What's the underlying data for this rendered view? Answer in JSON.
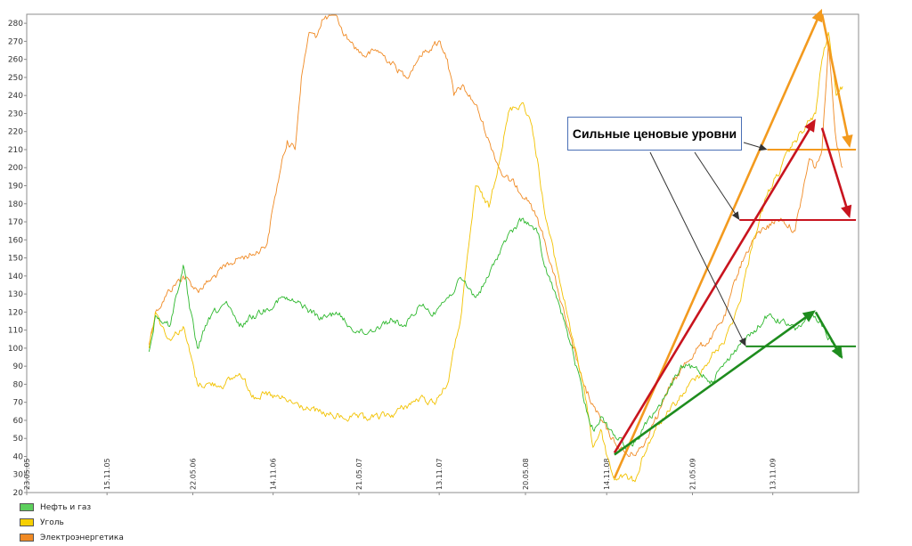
{
  "chart_data": {
    "type": "line",
    "title": "",
    "xlabel": "",
    "ylabel": "",
    "ylim": [
      20,
      285
    ],
    "grid": false,
    "legend_placement": "bottom-left",
    "y_ticks": [
      20,
      30,
      40,
      50,
      60,
      70,
      80,
      90,
      100,
      110,
      120,
      130,
      140,
      150,
      160,
      170,
      180,
      190,
      200,
      210,
      220,
      230,
      240,
      250,
      260,
      270,
      280
    ],
    "x_ticks": [
      "23.05.05",
      "15.11.05",
      "22.05.06",
      "14.11.06",
      "21.05.07",
      "13.11.07",
      "20.05.08",
      "14.11.08",
      "21.05.09",
      "13.11.09"
    ],
    "series": [
      {
        "name": "Нефть и газ",
        "color": "#2eb82e",
        "points": [
          [
            "15.02.06",
            98
          ],
          [
            "01.03.06",
            118
          ],
          [
            "01.04.06",
            112
          ],
          [
            "01.05.06",
            146
          ],
          [
            "15.05.06",
            122
          ],
          [
            "01.06.06",
            100
          ],
          [
            "01.07.06",
            118
          ],
          [
            "01.08.06",
            125
          ],
          [
            "01.09.06",
            112
          ],
          [
            "01.10.06",
            118
          ],
          [
            "01.11.06",
            122
          ],
          [
            "01.12.06",
            128
          ],
          [
            "15.01.07",
            124
          ],
          [
            "01.03.07",
            116
          ],
          [
            "01.04.07",
            120
          ],
          [
            "01.05.07",
            112
          ],
          [
            "01.06.07",
            108
          ],
          [
            "01.07.07",
            112
          ],
          [
            "01.08.07",
            116
          ],
          [
            "01.09.07",
            112
          ],
          [
            "01.10.07",
            124
          ],
          [
            "01.11.07",
            120
          ],
          [
            "01.12.07",
            128
          ],
          [
            "01.01.08",
            138
          ],
          [
            "01.02.08",
            128
          ],
          [
            "01.03.08",
            140
          ],
          [
            "01.04.08",
            158
          ],
          [
            "15.05.08",
            172
          ],
          [
            "15.06.08",
            164
          ],
          [
            "01.07.08",
            145
          ],
          [
            "01.08.08",
            125
          ],
          [
            "01.09.08",
            98
          ],
          [
            "01.10.08",
            65
          ],
          [
            "15.10.08",
            55
          ],
          [
            "01.11.08",
            62
          ],
          [
            "01.12.08",
            52
          ],
          [
            "01.01.09",
            45
          ],
          [
            "15.01.09",
            48
          ],
          [
            "01.02.09",
            55
          ],
          [
            "01.03.09",
            65
          ],
          [
            "01.04.09",
            78
          ],
          [
            "01.05.09",
            90
          ],
          [
            "01.06.09",
            88
          ],
          [
            "01.07.09",
            82
          ],
          [
            "01.08.09",
            92
          ],
          [
            "01.09.09",
            102
          ],
          [
            "01.10.09",
            108
          ],
          [
            "01.11.09",
            118
          ],
          [
            "01.12.09",
            115
          ],
          [
            "01.01.10",
            110
          ],
          [
            "01.02.10",
            118
          ],
          [
            "01.03.10",
            112
          ],
          [
            "01.04.10",
            100
          ],
          [
            "15.04.10",
            95
          ]
        ]
      },
      {
        "name": "Уголь",
        "color": "#f2c200",
        "points": [
          [
            "15.02.06",
            100
          ],
          [
            "01.03.06",
            120
          ],
          [
            "01.04.06",
            105
          ],
          [
            "01.05.06",
            112
          ],
          [
            "15.05.06",
            98
          ],
          [
            "01.06.06",
            80
          ],
          [
            "01.08.06",
            80
          ],
          [
            "01.09.06",
            86
          ],
          [
            "01.10.06",
            74
          ],
          [
            "01.11.06",
            74
          ],
          [
            "01.12.06",
            72
          ],
          [
            "01.02.07",
            66
          ],
          [
            "01.04.07",
            62
          ],
          [
            "01.06.07",
            61
          ],
          [
            "01.08.07",
            63
          ],
          [
            "01.09.07",
            68
          ],
          [
            "01.10.07",
            72
          ],
          [
            "01.11.07",
            70
          ],
          [
            "01.12.07",
            80
          ],
          [
            "01.01.08",
            120
          ],
          [
            "01.02.08",
            190
          ],
          [
            "01.03.08",
            178
          ],
          [
            "15.04.08",
            232
          ],
          [
            "15.05.08",
            236
          ],
          [
            "01.06.08",
            225
          ],
          [
            "15.06.08",
            205
          ],
          [
            "01.07.08",
            175
          ],
          [
            "01.08.08",
            140
          ],
          [
            "01.09.08",
            105
          ],
          [
            "01.10.08",
            70
          ],
          [
            "15.10.08",
            45
          ],
          [
            "01.11.08",
            55
          ],
          [
            "15.11.08",
            40
          ],
          [
            "01.12.08",
            27
          ],
          [
            "15.12.08",
            30
          ],
          [
            "15.01.09",
            26
          ],
          [
            "01.02.09",
            40
          ],
          [
            "01.03.09",
            55
          ],
          [
            "01.04.09",
            65
          ],
          [
            "01.05.09",
            75
          ],
          [
            "01.06.09",
            85
          ],
          [
            "01.07.09",
            95
          ],
          [
            "01.08.09",
            105
          ],
          [
            "01.09.09",
            125
          ],
          [
            "01.10.09",
            160
          ],
          [
            "01.11.09",
            185
          ],
          [
            "01.12.09",
            200
          ],
          [
            "01.01.10",
            215
          ],
          [
            "15.02.10",
            230
          ],
          [
            "01.03.10",
            260
          ],
          [
            "15.03.10",
            275
          ],
          [
            "01.04.10",
            240
          ],
          [
            "15.04.10",
            245
          ]
        ]
      },
      {
        "name": "Электроэнергетика",
        "color": "#f08a24",
        "points": [
          [
            "15.02.06",
            102
          ],
          [
            "01.03.06",
            120
          ],
          [
            "01.04.06",
            132
          ],
          [
            "01.05.06",
            140
          ],
          [
            "01.06.06",
            132
          ],
          [
            "01.07.06",
            138
          ],
          [
            "01.08.06",
            145
          ],
          [
            "01.09.06",
            150
          ],
          [
            "01.10.06",
            152
          ],
          [
            "01.11.06",
            158
          ],
          [
            "15.11.06",
            180
          ],
          [
            "01.12.06",
            200
          ],
          [
            "15.12.06",
            215
          ],
          [
            "01.01.07",
            210
          ],
          [
            "15.01.07",
            250
          ],
          [
            "01.02.07",
            275
          ],
          [
            "15.02.07",
            272
          ],
          [
            "01.03.07",
            282
          ],
          [
            "01.04.07",
            285
          ],
          [
            "15.04.07",
            275
          ],
          [
            "01.05.07",
            270
          ],
          [
            "01.06.07",
            262
          ],
          [
            "01.07.07",
            265
          ],
          [
            "01.08.07",
            258
          ],
          [
            "01.09.07",
            250
          ],
          [
            "01.10.07",
            262
          ],
          [
            "01.11.07",
            268
          ],
          [
            "15.11.07",
            270
          ],
          [
            "01.12.07",
            260
          ],
          [
            "15.12.07",
            240
          ],
          [
            "01.01.08",
            245
          ],
          [
            "01.02.08",
            235
          ],
          [
            "01.03.08",
            215
          ],
          [
            "01.04.08",
            195
          ],
          [
            "01.05.08",
            190
          ],
          [
            "01.06.08",
            180
          ],
          [
            "01.07.08",
            160
          ],
          [
            "01.08.08",
            130
          ],
          [
            "01.09.08",
            100
          ],
          [
            "01.10.08",
            75
          ],
          [
            "01.11.08",
            60
          ],
          [
            "01.12.08",
            48
          ],
          [
            "01.01.09",
            40
          ],
          [
            "01.02.09",
            45
          ],
          [
            "01.03.09",
            62
          ],
          [
            "01.04.09",
            78
          ],
          [
            "01.05.09",
            90
          ],
          [
            "01.06.09",
            100
          ],
          [
            "01.07.09",
            105
          ],
          [
            "01.08.09",
            118
          ],
          [
            "01.09.09",
            145
          ],
          [
            "01.10.09",
            160
          ],
          [
            "01.11.09",
            168
          ],
          [
            "01.12.09",
            172
          ],
          [
            "01.01.10",
            165
          ],
          [
            "01.02.10",
            205
          ],
          [
            "15.02.10",
            200
          ],
          [
            "01.03.10",
            210
          ],
          [
            "15.03.10",
            270
          ],
          [
            "01.04.10",
            215
          ],
          [
            "15.04.10",
            200
          ]
        ]
      }
    ],
    "annotation": {
      "text": "Сильные ценовые уровни",
      "levels": [
        {
          "value": 210,
          "from": "01.11.09",
          "to": "15.04.10",
          "color": "#f39a1e"
        },
        {
          "value": 171,
          "from": "01.09.09",
          "to": "15.04.10",
          "color": "#c8141e"
        },
        {
          "value": 101,
          "from": "15.09.09",
          "to": "15.04.10",
          "color": "#1e8c1e"
        }
      ],
      "trend_arrows": [
        {
          "color": "#f39a1e",
          "from": [
            "01.12.08",
            28
          ],
          "to": [
            "01.03.10",
            288
          ]
        },
        {
          "color": "#f39a1e",
          "from": [
            "01.03.10",
            285
          ],
          "to": [
            "01.05.10",
            211
          ]
        },
        {
          "color": "#c8141e",
          "from": [
            "01.12.08",
            42
          ],
          "to": [
            "15.02.10",
            227
          ]
        },
        {
          "color": "#c8141e",
          "from": [
            "01.03.10",
            222
          ],
          "to": [
            "01.05.10",
            172
          ]
        },
        {
          "color": "#1e8c1e",
          "from": [
            "01.12.08",
            41
          ],
          "to": [
            "15.02.10",
            121
          ]
        },
        {
          "color": "#1e8c1e",
          "from": [
            "15.02.10",
            120
          ],
          "to": [
            "15.04.10",
            94
          ]
        }
      ],
      "pointers": [
        {
          "target": [
            "01.11.09",
            210
          ]
        },
        {
          "target": [
            "01.09.09",
            171
          ]
        },
        {
          "target": [
            "15.09.09",
            101
          ]
        }
      ]
    }
  }
}
